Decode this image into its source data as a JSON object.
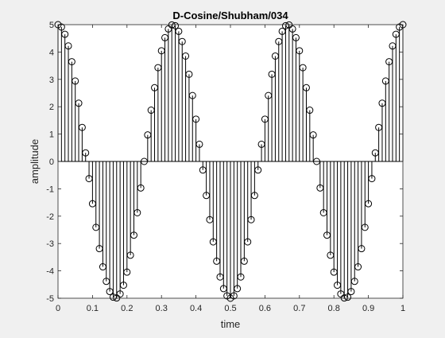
{
  "chart_data": {
    "type": "stem",
    "title": "D-Cosine/Shubham/034",
    "xlabel": "time",
    "ylabel": "amplitude",
    "xlim": [
      0,
      1
    ],
    "ylim": [
      -5,
      5
    ],
    "xticks": [
      "0",
      "0.1",
      "0.2",
      "0.3",
      "0.4",
      "0.5",
      "0.6",
      "0.7",
      "0.8",
      "0.9",
      "1"
    ],
    "yticks": [
      "5",
      "4",
      "3",
      "2",
      "1",
      "0",
      "-1",
      "-2",
      "-3",
      "-4",
      "-5"
    ],
    "grid": false,
    "marker": "open-circle",
    "series": [
      {
        "x": [
          0,
          0.01,
          0.02,
          0.03,
          0.04,
          0.05,
          0.06,
          0.07,
          0.08,
          0.09,
          0.1,
          0.11,
          0.12,
          0.13,
          0.14,
          0.15,
          0.16,
          0.17,
          0.18,
          0.19,
          0.2,
          0.21,
          0.22,
          0.23,
          0.24,
          0.25,
          0.26,
          0.27,
          0.28,
          0.29,
          0.3,
          0.31,
          0.32,
          0.33,
          0.34,
          0.35,
          0.36,
          0.37,
          0.38,
          0.39,
          0.4,
          0.41,
          0.42,
          0.43,
          0.44,
          0.45,
          0.46,
          0.47,
          0.48,
          0.49,
          0.5,
          0.51,
          0.52,
          0.53,
          0.54,
          0.55,
          0.56,
          0.57,
          0.58,
          0.59,
          0.6,
          0.61,
          0.62,
          0.63,
          0.64,
          0.65,
          0.66,
          0.67,
          0.68,
          0.69,
          0.7,
          0.71,
          0.72,
          0.73,
          0.74,
          0.75,
          0.76,
          0.77,
          0.78,
          0.79,
          0.8,
          0.81,
          0.82,
          0.83,
          0.84,
          0.85,
          0.86,
          0.87,
          0.88,
          0.89,
          0.9,
          0.91,
          0.92,
          0.93,
          0.94,
          0.95,
          0.96,
          0.97,
          0.98,
          0.99,
          1
        ],
        "y": [
          5,
          4.911,
          4.649,
          4.222,
          3.645,
          2.939,
          2.129,
          1.243,
          0.314,
          -0.628,
          -1.545,
          -2.409,
          -3.187,
          -3.852,
          -4.383,
          -4.755,
          -4.961,
          -4.99,
          -4.843,
          -4.523,
          -4.045,
          -3.427,
          -2.695,
          -1.874,
          -0.969,
          0,
          0.969,
          1.874,
          2.695,
          3.427,
          4.045,
          4.523,
          4.843,
          4.99,
          4.961,
          4.755,
          4.383,
          3.852,
          3.187,
          2.409,
          1.545,
          0.628,
          -0.314,
          -1.243,
          -2.129,
          -2.939,
          -3.645,
          -4.222,
          -4.649,
          -4.911,
          -5,
          -4.911,
          -4.649,
          -4.222,
          -3.645,
          -2.939,
          -2.129,
          -1.243,
          -0.314,
          0.628,
          1.545,
          2.409,
          3.187,
          3.852,
          4.383,
          4.755,
          4.961,
          4.99,
          4.843,
          4.523,
          4.045,
          3.427,
          2.695,
          1.874,
          0.969,
          0,
          -0.969,
          -1.874,
          -2.695,
          -3.427,
          -4.045,
          -4.523,
          -4.843,
          -4.99,
          -4.961,
          -4.755,
          -4.383,
          -3.852,
          -3.187,
          -2.409,
          -1.545,
          -0.628,
          0.314,
          1.243,
          2.129,
          2.939,
          3.645,
          4.222,
          4.649,
          4.911,
          5
        ]
      }
    ]
  }
}
